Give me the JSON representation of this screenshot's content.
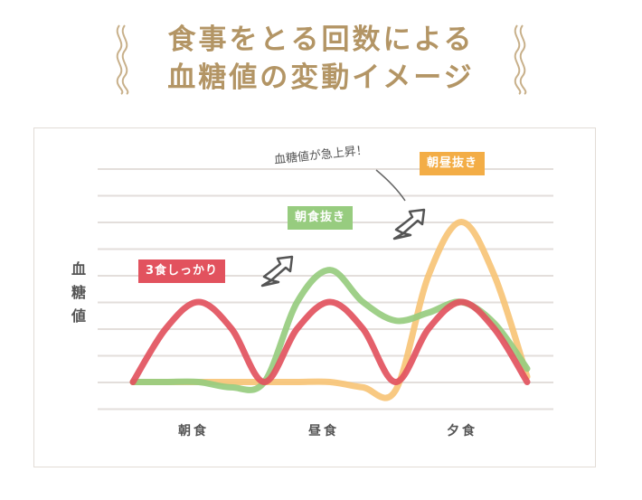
{
  "header": {
    "title_line1": "食事をとる回数による",
    "title_line2": "血糖値の変動イメージ"
  },
  "colors": {
    "title": "#b39565",
    "red": "#e2525e",
    "green": "#97cc7f",
    "orange": "#f7c477",
    "orange_tag": "#f3ad46",
    "grid": "#e3dedb",
    "text": "#555555"
  },
  "annotation": "血糖値が急上昇！",
  "tags": {
    "red": "3食しっかり",
    "green": "朝食抜き",
    "orange": "朝昼抜き"
  },
  "chart_data": {
    "type": "line",
    "title": "食事をとる回数による血糖値の変動イメージ",
    "xlabel": "",
    "ylabel": "血糖値",
    "x_ticks": [
      "朝食",
      "昼食",
      "夕食"
    ],
    "grid": true,
    "gridlines": 10,
    "ylim": [
      0,
      10
    ],
    "legend_position": "inline tags",
    "annotations": [
      "血糖値が急上昇！"
    ],
    "x": [
      0,
      1,
      2,
      3,
      4,
      5,
      6,
      7,
      8,
      9,
      10,
      11,
      12
    ],
    "series": [
      {
        "name": "3食しっかり",
        "color": "#e2525e",
        "values": [
          1,
          3,
          4,
          3,
          1,
          3,
          4,
          3,
          1,
          3,
          4,
          3,
          1
        ]
      },
      {
        "name": "朝食抜き",
        "color": "#97cc7f",
        "values": [
          1,
          1,
          1,
          0.8,
          1,
          4,
          5.2,
          4,
          3.3,
          3.6,
          4,
          3.2,
          1.5
        ]
      },
      {
        "name": "朝昼抜き",
        "color": "#f7c477",
        "values": [
          1,
          1,
          1,
          1,
          1,
          1,
          1,
          0.8,
          0.7,
          5,
          7,
          5,
          1.2
        ]
      }
    ]
  }
}
